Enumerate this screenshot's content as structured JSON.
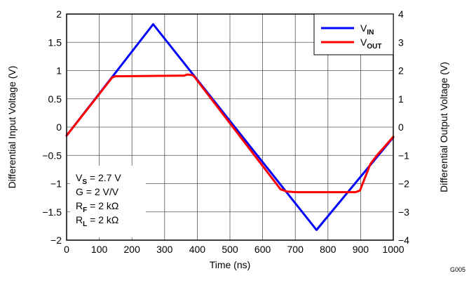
{
  "chart_data": {
    "type": "line",
    "xlabel": "Time (ns)",
    "ylabel_left": "Differential Input Voltage (V)",
    "ylabel_right": "Differential Output Voltage (V)",
    "xlim": [
      0,
      1000
    ],
    "ylim_left": [
      -2,
      2
    ],
    "ylim_right": [
      -4,
      4
    ],
    "x_ticks": [
      "0",
      "100",
      "200",
      "300",
      "400",
      "500",
      "600",
      "700",
      "800",
      "900",
      "1000"
    ],
    "y_left_ticks": [
      "2",
      "1.5",
      "1",
      "0.5",
      "0",
      "−0.5",
      "−1",
      "−1.5",
      "−2"
    ],
    "y_right_ticks": [
      "4",
      "3",
      "2",
      "1",
      "0",
      "−1",
      "−2",
      "−3",
      "−4"
    ],
    "grid": true,
    "legend": "top-right",
    "series": [
      {
        "name_main": "V",
        "name_sub": "IN",
        "axis": "left",
        "color": "#0000ff",
        "points": [
          [
            0,
            -0.15
          ],
          [
            265,
            1.82
          ],
          [
            765,
            -1.82
          ],
          [
            1000,
            -0.18
          ]
        ]
      },
      {
        "name_main": "V",
        "name_sub": "OUT",
        "axis": "left",
        "color": "#ff0000",
        "points": [
          [
            0,
            -0.15
          ],
          [
            140,
            0.88
          ],
          [
            150,
            0.9
          ],
          [
            360,
            0.91
          ],
          [
            370,
            0.93
          ],
          [
            385,
            0.92
          ],
          [
            390,
            0.9
          ],
          [
            655,
            -1.1
          ],
          [
            675,
            -1.14
          ],
          [
            700,
            -1.15
          ],
          [
            885,
            -1.15
          ],
          [
            898,
            -1.12
          ],
          [
            930,
            -0.65
          ],
          [
            950,
            -0.5
          ],
          [
            1000,
            -0.17
          ]
        ]
      }
    ],
    "annotations": [
      {
        "main": "V",
        "sub": "S",
        "rest": " = 2.7 V"
      },
      {
        "main": "G = 2 V/V",
        "sub": "",
        "rest": ""
      },
      {
        "main": "R",
        "sub": "F",
        "rest": " = 2 kΩ"
      },
      {
        "main": "R",
        "sub": "L",
        "rest": " = 2 kΩ"
      }
    ],
    "figure_id": "G005"
  }
}
